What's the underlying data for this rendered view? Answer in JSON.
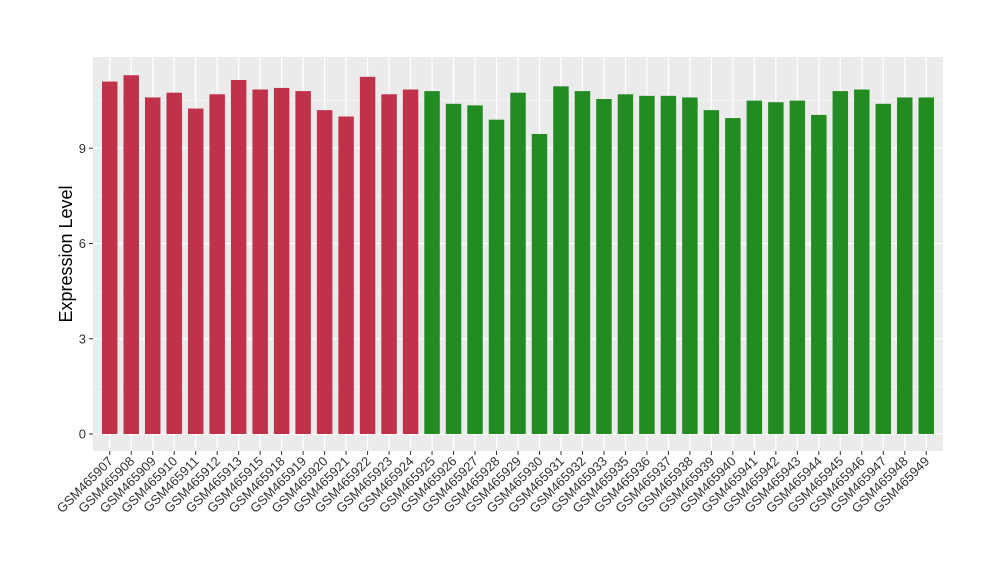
{
  "chart_data": {
    "type": "bar",
    "title": "",
    "xlabel": "",
    "ylabel": "Expression Level",
    "ylim": [
      0,
      11.5
    ],
    "yticks": [
      0,
      3,
      6,
      9
    ],
    "grid": true,
    "panel_background": "#ebebeb",
    "gridline_color": "#ffffff",
    "categories": [
      "GSM465907",
      "GSM465908",
      "GSM465909",
      "GSM465910",
      "GSM465911",
      "GSM465912",
      "GSM465913",
      "GSM465915",
      "GSM465918",
      "GSM465919",
      "GSM465920",
      "GSM465921",
      "GSM465922",
      "GSM465923",
      "GSM465924",
      "GSM465925",
      "GSM465926",
      "GSM465927",
      "GSM465928",
      "GSM465929",
      "GSM465930",
      "GSM465931",
      "GSM465932",
      "GSM465933",
      "GSM465935",
      "GSM465936",
      "GSM465937",
      "GSM465938",
      "GSM465939",
      "GSM465940",
      "GSM465941",
      "GSM465942",
      "GSM465943",
      "GSM465944",
      "GSM465945",
      "GSM465946",
      "GSM465947",
      "GSM465948",
      "GSM465949"
    ],
    "values": [
      11.1,
      11.3,
      10.6,
      10.75,
      10.25,
      10.7,
      11.15,
      10.85,
      10.9,
      10.8,
      10.2,
      10.0,
      11.25,
      10.7,
      10.85,
      10.8,
      10.4,
      10.35,
      9.9,
      10.75,
      9.45,
      10.95,
      10.8,
      10.55,
      10.7,
      10.65,
      10.65,
      10.6,
      10.2,
      9.95,
      10.5,
      10.45,
      10.5,
      10.05,
      10.8,
      10.85,
      10.4,
      10.6,
      10.6
    ],
    "bar_colors": [
      "#c0314a",
      "#c0314a",
      "#c0314a",
      "#c0314a",
      "#c0314a",
      "#c0314a",
      "#c0314a",
      "#c0314a",
      "#c0314a",
      "#c0314a",
      "#c0314a",
      "#c0314a",
      "#c0314a",
      "#c0314a",
      "#c0314a",
      "#228b22",
      "#228b22",
      "#228b22",
      "#228b22",
      "#228b22",
      "#228b22",
      "#228b22",
      "#228b22",
      "#228b22",
      "#228b22",
      "#228b22",
      "#228b22",
      "#228b22",
      "#228b22",
      "#228b22",
      "#228b22",
      "#228b22",
      "#228b22",
      "#228b22",
      "#228b22",
      "#228b22",
      "#228b22",
      "#228b22",
      "#228b22"
    ]
  }
}
